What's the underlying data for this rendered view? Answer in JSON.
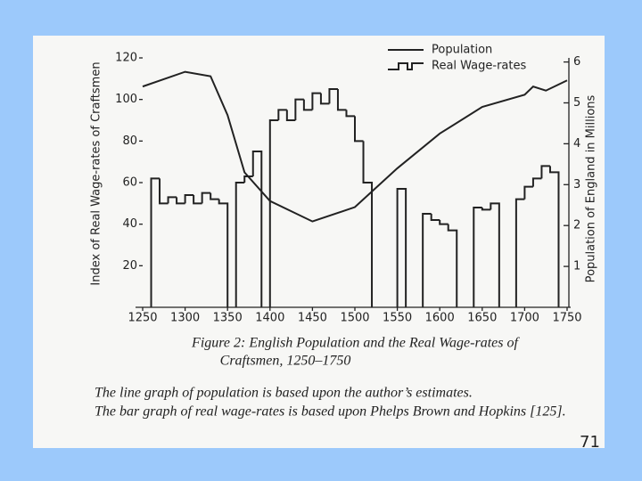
{
  "chart_data": {
    "type": "line",
    "ylabel": "Index of Real Wage-rates of Craftsmen",
    "y2label": "Population of England in Millions",
    "caption": [
      "Figure 2: English Population and the Real Wage-rates of",
      "Craftsmen, 1250–1750"
    ],
    "notes": [
      "The line graph of population is based upon the author’s estimates.",
      "The bar graph of real wage-rates is based upon Phelps Brown and Hopkins [125]."
    ],
    "page_number": "71",
    "xlim": [
      1250,
      1750
    ],
    "xticks": [
      1250,
      1300,
      1350,
      1400,
      1450,
      1500,
      1550,
      1600,
      1650,
      1700,
      1750
    ],
    "ylim": [
      0,
      120
    ],
    "yticks": [
      20,
      40,
      60,
      80,
      100,
      120
    ],
    "y2lim": [
      0,
      6.1
    ],
    "y2ticks": [
      1,
      2,
      3,
      4,
      5,
      6
    ],
    "step_width": 10,
    "series": [
      {
        "name": "Population",
        "color": "#222222",
        "axis": "y2",
        "style": "line",
        "x": [
          1250,
          1300,
          1330,
          1350,
          1370,
          1400,
          1450,
          1500,
          1550,
          1600,
          1650,
          1700,
          1710,
          1725,
          1750
        ],
        "values": [
          5.4,
          5.76,
          5.65,
          4.7,
          3.3,
          2.6,
          2.1,
          2.45,
          3.4,
          4.25,
          4.9,
          5.2,
          5.4,
          5.3,
          5.55
        ]
      },
      {
        "name": "Real Wage-rates",
        "color": "#222222",
        "axis": "y",
        "style": "step",
        "x": [
          1260,
          1270,
          1280,
          1290,
          1300,
          1310,
          1320,
          1330,
          1340,
          1350,
          1360,
          1370,
          1380,
          1390,
          1400,
          1410,
          1420,
          1430,
          1440,
          1450,
          1460,
          1470,
          1480,
          1490,
          1500,
          1510,
          1520,
          1530,
          1540,
          1550,
          1560,
          1570,
          1580,
          1590,
          1600,
          1610,
          1620,
          1630,
          1640,
          1650,
          1660,
          1670,
          1680,
          1690,
          1700,
          1710,
          1720,
          1730
        ],
        "values": [
          62,
          50,
          53,
          50,
          54,
          50,
          55,
          52,
          50,
          null,
          60,
          63,
          75,
          null,
          90,
          95,
          90,
          100,
          95,
          103,
          98,
          105,
          95,
          92,
          80,
          60,
          null,
          null,
          null,
          57,
          null,
          null,
          45,
          42,
          40,
          37,
          null,
          null,
          48,
          47,
          50,
          null,
          null,
          52,
          58,
          62,
          68,
          65
        ]
      }
    ]
  }
}
